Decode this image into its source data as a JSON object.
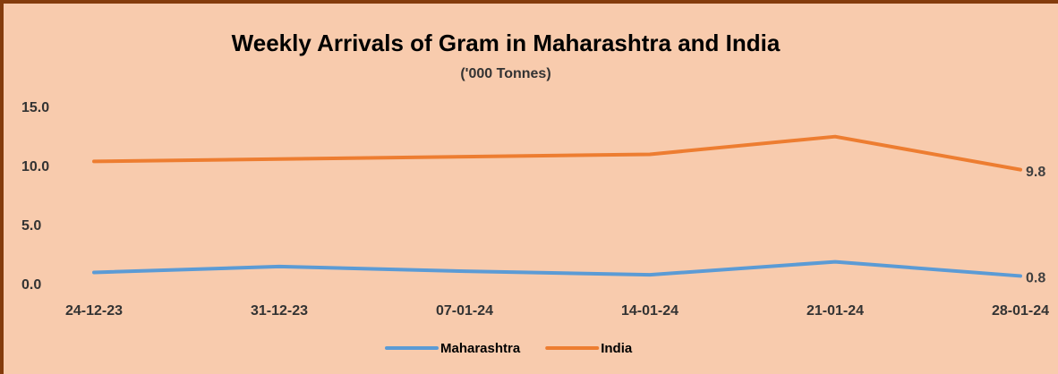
{
  "chart_data": {
    "type": "line",
    "title": "Weekly Arrivals of Gram in Maharashtra and India",
    "subtitle": "('000 Tonnes)",
    "categories": [
      "24-12-23",
      "31-12-23",
      "07-01-24",
      "14-01-24",
      "21-01-24",
      "28-01-24"
    ],
    "series": [
      {
        "name": "Maharashtra",
        "color": "#5b9bd5",
        "values": [
          1.1,
          1.6,
          1.2,
          0.9,
          2.0,
          0.8
        ],
        "value_labels": [
          null,
          null,
          null,
          null,
          null,
          "0.8"
        ]
      },
      {
        "name": "India",
        "color": "#ed7d31",
        "values": [
          10.5,
          10.7,
          10.9,
          11.1,
          12.6,
          9.8
        ],
        "value_labels": [
          null,
          null,
          null,
          null,
          null,
          "9.8"
        ]
      }
    ],
    "ylim": [
      0,
      15
    ],
    "yticks": [
      {
        "value": 0,
        "label": "0.0"
      },
      {
        "value": 5,
        "label": "5.0"
      },
      {
        "value": 10,
        "label": "10.0"
      },
      {
        "value": 15,
        "label": "15.0"
      }
    ],
    "grid": false,
    "legend": "bottom"
  }
}
